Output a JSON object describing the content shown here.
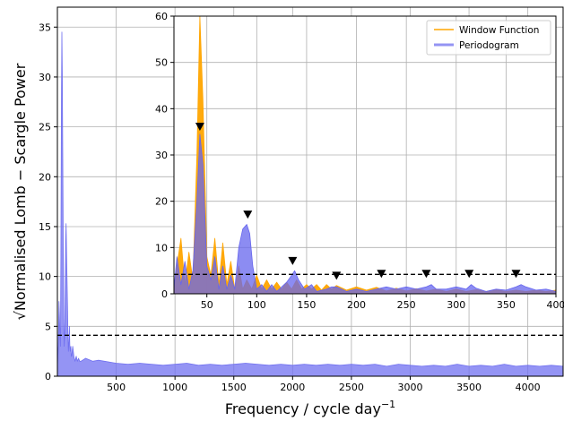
{
  "chart_data": [
    {
      "type": "area",
      "role": "main",
      "xlabel": "Frequency / cycle day",
      "xlabel_superscript": "−1",
      "ylabel": "Normalised Lomb − Scargle Power",
      "ylabel_prefix": "√",
      "xlim": [
        0,
        4300
      ],
      "ylim": [
        0,
        37
      ],
      "xticks": [
        500,
        1000,
        1500,
        2000,
        2500,
        3000,
        3500,
        4000
      ],
      "yticks": [
        0,
        5,
        10,
        15,
        20,
        25,
        30,
        35
      ],
      "grid": true,
      "threshold": 4.1,
      "series": [
        {
          "color": "#7070f0",
          "x": [
            0,
            8,
            14,
            20,
            26,
            30,
            34,
            38,
            42,
            46,
            50,
            54,
            58,
            62,
            66,
            70,
            74,
            78,
            82,
            86,
            90,
            94,
            98,
            102,
            106,
            110,
            114,
            118,
            122,
            126,
            130,
            140,
            150,
            160,
            170,
            180,
            190,
            200,
            240,
            300,
            350,
            400,
            450,
            500,
            600,
            700,
            800,
            900,
            1000,
            1100,
            1200,
            1300,
            1400,
            1500,
            1600,
            1700,
            1800,
            1900,
            2000,
            2100,
            2200,
            2300,
            2400,
            2500,
            2600,
            2700,
            2800,
            2900,
            3000,
            3100,
            3200,
            3300,
            3400,
            3500,
            3600,
            3700,
            3800,
            3900,
            4000,
            4100,
            4200,
            4300
          ],
          "values": [
            1.0,
            3.0,
            7.5,
            5.0,
            3.0,
            12.0,
            27.5,
            34.5,
            30.0,
            22.0,
            12.0,
            5.5,
            3.0,
            4.0,
            8.5,
            13.5,
            15.3,
            12.5,
            9.5,
            7.0,
            4.0,
            2.5,
            3.5,
            5.0,
            3.0,
            2.5,
            3.0,
            2.0,
            2.0,
            2.5,
            3.0,
            2.0,
            1.5,
            2.0,
            1.5,
            1.8,
            1.5,
            1.5,
            1.8,
            1.5,
            1.6,
            1.5,
            1.4,
            1.3,
            1.2,
            1.3,
            1.2,
            1.1,
            1.2,
            1.3,
            1.1,
            1.2,
            1.1,
            1.2,
            1.3,
            1.2,
            1.1,
            1.2,
            1.1,
            1.2,
            1.1,
            1.2,
            1.1,
            1.2,
            1.1,
            1.2,
            1.0,
            1.2,
            1.1,
            1.0,
            1.1,
            1.0,
            1.2,
            1.0,
            1.1,
            1.0,
            1.2,
            1.0,
            1.1,
            1.0,
            1.1,
            1.0
          ]
        }
      ]
    },
    {
      "type": "area",
      "role": "inset",
      "xlim": [
        17,
        400
      ],
      "ylim": [
        0,
        60
      ],
      "xticks": [
        50,
        100,
        150,
        200,
        250,
        300,
        350,
        400
      ],
      "yticks": [
        0,
        10,
        20,
        30,
        40,
        50,
        60
      ],
      "grid": true,
      "threshold": 4.2,
      "legend_position": "top-right",
      "series": [
        {
          "name": "Window Function",
          "color": "#ffa500",
          "x": [
            17,
            20,
            24,
            28,
            32,
            36,
            40,
            43,
            46,
            50,
            54,
            58,
            62,
            66,
            70,
            74,
            78,
            82,
            86,
            90,
            95,
            100,
            105,
            110,
            115,
            120,
            125,
            130,
            135,
            140,
            145,
            150,
            155,
            160,
            165,
            170,
            175,
            180,
            190,
            200,
            210,
            220,
            230,
            240,
            250,
            260,
            270,
            280,
            290,
            300,
            310,
            320,
            330,
            340,
            350,
            360,
            370,
            380,
            390,
            400
          ],
          "values": [
            1,
            6,
            12,
            2,
            9,
            3,
            30,
            60,
            42,
            8,
            4,
            12,
            2,
            11,
            2,
            7,
            1,
            6,
            1,
            3,
            1,
            4,
            1,
            3,
            1,
            2.5,
            1,
            2.5,
            1,
            3,
            1,
            2,
            1,
            2,
            0.8,
            2,
            1,
            1.8,
            0.8,
            1.5,
            0.8,
            1.4,
            0.6,
            1.2,
            0.6,
            1.1,
            0.6,
            1.0,
            0.5,
            1.0,
            0.5,
            0.9,
            0.5,
            0.9,
            0.5,
            0.8,
            0.5,
            0.8,
            0.5,
            0.8
          ]
        },
        {
          "name": "Periodogram",
          "color": "#6666ee",
          "x": [
            17,
            20,
            24,
            28,
            32,
            36,
            40,
            43,
            46,
            50,
            54,
            58,
            62,
            66,
            70,
            74,
            78,
            82,
            86,
            90,
            93,
            96,
            100,
            105,
            110,
            115,
            120,
            125,
            130,
            135,
            138,
            142,
            148,
            155,
            160,
            170,
            175,
            180,
            185,
            190,
            200,
            210,
            220,
            230,
            240,
            250,
            260,
            270,
            275,
            280,
            290,
            300,
            310,
            315,
            320,
            330,
            340,
            350,
            360,
            365,
            370,
            380,
            390,
            400
          ],
          "values": [
            1,
            8,
            2,
            7,
            1,
            5,
            20,
            34.5,
            28,
            6,
            3,
            8,
            1,
            6,
            1,
            4,
            1,
            10,
            14,
            15,
            13,
            6,
            1,
            2,
            0.5,
            2,
            0.5,
            1.5,
            2.5,
            4,
            5,
            3,
            1,
            2,
            0.5,
            1,
            1.5,
            1.5,
            1,
            0.5,
            1,
            0.5,
            1,
            1.5,
            1,
            1.5,
            1,
            1.5,
            2,
            1,
            1,
            1.5,
            1,
            2,
            1.2,
            0.5,
            1,
            0.8,
            1.5,
            2,
            1.5,
            0.8,
            1,
            0.5
          ]
        }
      ],
      "markers": {
        "x": [
          43,
          91,
          136,
          180,
          225,
          270,
          313,
          360
        ],
        "y": [
          36,
          17,
          7,
          3.8,
          4.2,
          4.2,
          4.2,
          4.2
        ]
      }
    }
  ]
}
